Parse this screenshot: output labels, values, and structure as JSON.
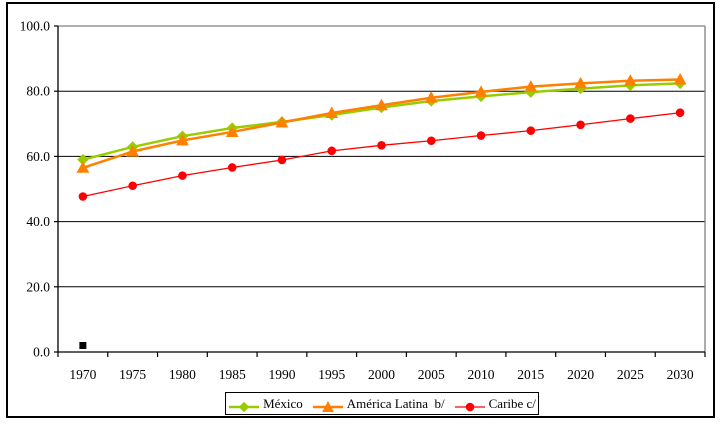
{
  "figure": {
    "background_color": "#FFFFFF",
    "border_color": "#000000"
  },
  "chart_data": {
    "type": "line",
    "title": "",
    "xlabel": "",
    "ylabel": "",
    "categories": [
      "1970",
      "1975",
      "1980",
      "1985",
      "1990",
      "1995",
      "2000",
      "2005",
      "2010",
      "2015",
      "2020",
      "2025",
      "2030"
    ],
    "y_axis": {
      "min": 0,
      "max": 100,
      "step": 20,
      "tick_labels": [
        "0.0",
        "20.0",
        "40.0",
        "60.0",
        "80.0",
        "100.0"
      ]
    },
    "grid": {
      "gridlines_on": true,
      "gridline_color": "#000000",
      "plot_border_color": "#808080",
      "axis_color": "#000000"
    },
    "series": [
      {
        "name": "México",
        "marker": "diamond",
        "color": "#99CC00",
        "line_width": 2.5,
        "values": [
          59.0,
          62.9,
          66.2,
          68.7,
          70.6,
          72.7,
          75.0,
          77.0,
          78.4,
          79.7,
          80.8,
          81.8,
          82.4
        ]
      },
      {
        "name": "América Latina  b/",
        "marker": "triangle",
        "color": "#FF8000",
        "line_width": 2.5,
        "values": [
          56.5,
          61.5,
          64.9,
          67.5,
          70.4,
          73.3,
          75.7,
          78.0,
          79.8,
          81.4,
          82.4,
          83.2,
          83.6
        ]
      },
      {
        "name": "Caribe c/",
        "marker": "circle",
        "color": "#FF0000",
        "line_width": 1.3,
        "values": [
          47.7,
          51.0,
          54.1,
          56.6,
          58.9,
          61.7,
          63.4,
          64.8,
          66.4,
          67.9,
          69.7,
          71.6,
          73.4
        ]
      }
    ],
    "outlier_point": {
      "category": "1970",
      "value": 2.0,
      "marker": "square",
      "color": "#000000"
    },
    "legend": {
      "position": "bottom-center",
      "border": true
    }
  }
}
